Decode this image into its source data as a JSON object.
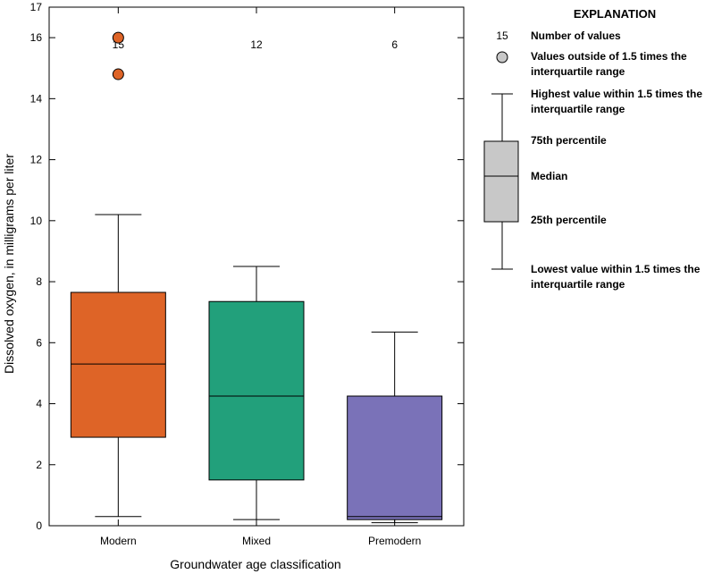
{
  "chart_data": {
    "type": "box",
    "title": "",
    "xlabel": "Groundwater age classification",
    "ylabel": "Dissolved oxygen, in milligrams per liter",
    "ylim": [
      0,
      17
    ],
    "yticks": [
      0,
      2,
      4,
      6,
      8,
      10,
      12,
      14,
      16
    ],
    "ytick_labels": [
      "0",
      "2",
      "4",
      "6",
      "8",
      "10",
      "12",
      "14",
      "16"
    ],
    "y_top_label": "17",
    "grid": false,
    "legend_placement": "right",
    "categories": [
      "Modern",
      "Mixed",
      "Premodern"
    ],
    "boxes": [
      {
        "category": "Modern",
        "count": "15",
        "color": "#de6427",
        "whisker_low": 0.3,
        "q1": 2.9,
        "median": 5.3,
        "q3": 7.65,
        "whisker_high": 10.2,
        "outliers": [
          16.0,
          14.8
        ]
      },
      {
        "category": "Mixed",
        "count": "12",
        "color": "#22a07b",
        "whisker_low": 0.2,
        "q1": 1.5,
        "median": 4.25,
        "q3": 7.35,
        "whisker_high": 8.5,
        "outliers": []
      },
      {
        "category": "Premodern",
        "count": "6",
        "color": "#7a72b8",
        "whisker_low": 0.1,
        "q1": 0.2,
        "median": 0.3,
        "q3": 4.25,
        "whisker_high": 6.35,
        "outliers": []
      }
    ]
  },
  "legend": {
    "title": "EXPLANATION",
    "count_example": "15",
    "box_color": "#c8c8c8",
    "items": {
      "number_of_values": "Number of values",
      "outside_1": "Values outside of 1.5 times the",
      "outside_2": "interquartile range",
      "highest_1": "Highest value within 1.5 times the",
      "highest_2": "interquartile range",
      "p75": "75th percentile",
      "median": "Median",
      "p25": "25th percentile",
      "lowest_1": "Lowest value within 1.5 times the",
      "lowest_2": "interquartile range"
    }
  }
}
